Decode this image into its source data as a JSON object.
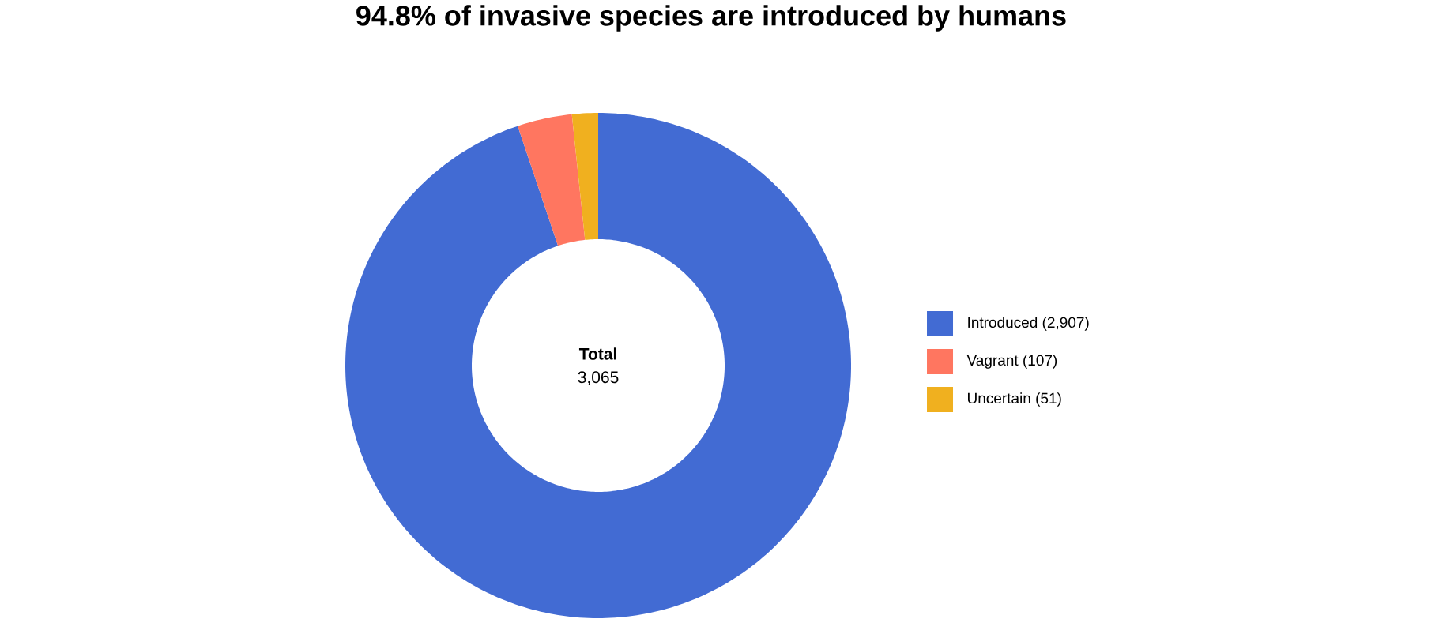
{
  "chart_data": {
    "type": "donut",
    "title": "94.8% of invasive species are introduced by humans",
    "categories": [
      "Introduced (2,907)",
      "Vagrant (107)",
      "Uncertain (51)"
    ],
    "values": [
      2907,
      107,
      51
    ],
    "colors": [
      "#426bd3",
      "#ff7660",
      "#f0b01f"
    ],
    "legend": "right",
    "annotations": [
      "Total",
      "3,065"
    ]
  }
}
